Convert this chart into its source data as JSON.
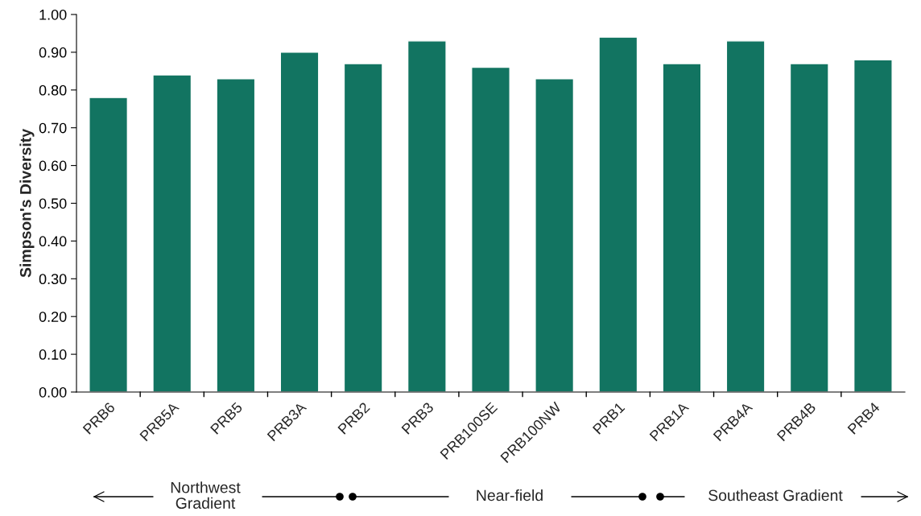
{
  "chart_data": {
    "type": "bar",
    "ylabel": "Simpson's Diversity",
    "categories": [
      "PRB6",
      "PRB5A",
      "PRB5",
      "PRB3A",
      "PRB2",
      "PRB3",
      "PRB100SE",
      "PRB100NW",
      "PRB1",
      "PRB1A",
      "PRB4A",
      "PRB4B",
      "PRB4"
    ],
    "values": [
      0.78,
      0.84,
      0.83,
      0.9,
      0.87,
      0.93,
      0.86,
      0.83,
      0.94,
      0.87,
      0.93,
      0.87,
      0.88
    ],
    "color": "#127461",
    "ylim": [
      0,
      1
    ],
    "yticks": [
      {
        "value": 0,
        "label": "0.00"
      },
      {
        "value": 0.1,
        "label": "0.10"
      },
      {
        "value": 0.2,
        "label": "0.20"
      },
      {
        "value": 0.3,
        "label": "0.30"
      },
      {
        "value": 0.4,
        "label": "0.40"
      },
      {
        "value": 0.5,
        "label": "0.50"
      },
      {
        "value": 0.6,
        "label": "0.60"
      },
      {
        "value": 0.7,
        "label": "0.70"
      },
      {
        "value": 0.8,
        "label": "0.80"
      },
      {
        "value": 0.9,
        "label": "0.90"
      },
      {
        "value": 1,
        "label": "1.00"
      }
    ],
    "grid": false,
    "annotations": [
      "Northwest\nGradient",
      "Near-field",
      "Southeast Gradient"
    ]
  }
}
